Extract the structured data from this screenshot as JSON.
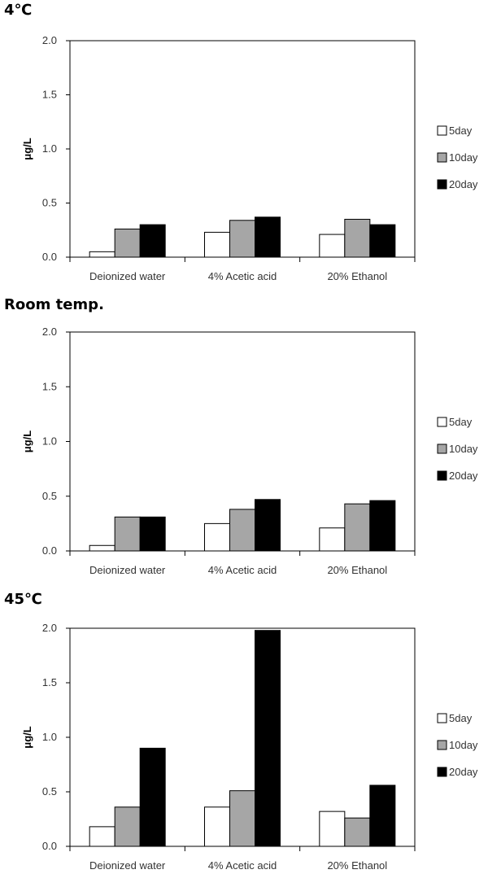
{
  "chart_data": [
    {
      "type": "bar",
      "title": "4℃",
      "ylabel": "μg/L",
      "categories": [
        "Deionized water",
        "4% Acetic acid",
        "20% Ethanol"
      ],
      "series": [
        {
          "name": "5day",
          "values": [
            0.05,
            0.23,
            0.21
          ],
          "color": "#ffffff"
        },
        {
          "name": "10day",
          "values": [
            0.26,
            0.34,
            0.35
          ],
          "color": "#a6a6a6"
        },
        {
          "name": "20day",
          "values": [
            0.3,
            0.37,
            0.3
          ],
          "color": "#000000"
        }
      ],
      "ylim": [
        0,
        2.0
      ],
      "yticks": [
        "0.0",
        "0.5",
        "1.0",
        "1.5",
        "2.0"
      ],
      "legend": "right",
      "grid": false
    },
    {
      "type": "bar",
      "title": "Room temp.",
      "ylabel": "μg/L",
      "categories": [
        "Deionized water",
        "4% Acetic acid",
        "20% Ethanol"
      ],
      "series": [
        {
          "name": "5day",
          "values": [
            0.05,
            0.25,
            0.21
          ],
          "color": "#ffffff"
        },
        {
          "name": "10day",
          "values": [
            0.31,
            0.38,
            0.43
          ],
          "color": "#a6a6a6"
        },
        {
          "name": "20day",
          "values": [
            0.31,
            0.47,
            0.46
          ],
          "color": "#000000"
        }
      ],
      "ylim": [
        0,
        2.0
      ],
      "yticks": [
        "0.0",
        "0.5",
        "1.0",
        "1.5",
        "2.0"
      ],
      "legend": "right",
      "grid": false
    },
    {
      "type": "bar",
      "title": "45℃",
      "ylabel": "μg/L",
      "categories": [
        "Deionized water",
        "4% Acetic acid",
        "20% Ethanol"
      ],
      "series": [
        {
          "name": "5day",
          "values": [
            0.18,
            0.36,
            0.32
          ],
          "color": "#ffffff"
        },
        {
          "name": "10day",
          "values": [
            0.36,
            0.51,
            0.26
          ],
          "color": "#a6a6a6"
        },
        {
          "name": "20day",
          "values": [
            0.9,
            1.98,
            0.56
          ],
          "color": "#000000"
        }
      ],
      "ylim": [
        0,
        2.0
      ],
      "yticks": [
        "0.0",
        "0.5",
        "1.0",
        "1.5",
        "2.0"
      ],
      "legend": "right",
      "grid": false
    }
  ]
}
